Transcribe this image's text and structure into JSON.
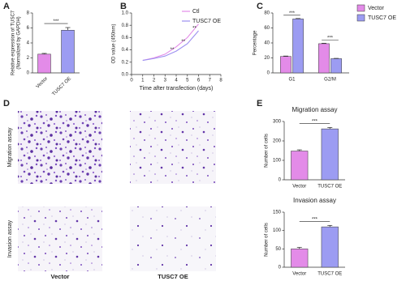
{
  "panels": {
    "a": "A",
    "b": "B",
    "c": "C",
    "d": "D",
    "e": "E"
  },
  "images": {
    "rows": [
      "Migration assay",
      "Invasion assay"
    ],
    "columns": [
      "Vector",
      "TUSC7 OE"
    ]
  },
  "chart_data": [
    {
      "type": "bar",
      "ylabel": [
        "Relative expression of TUSC7",
        "(Normalized by GAPDH)"
      ],
      "categories": [
        "Vector",
        "TUSC7 OE"
      ],
      "values": [
        2.5,
        5.7
      ],
      "errors": [
        0.1,
        0.35
      ],
      "colors": [
        "#e38be8",
        "#9c9cf2"
      ],
      "ylim": [
        0,
        8
      ],
      "yticks": [
        0,
        2,
        4,
        6,
        8
      ],
      "annotations": [
        "***"
      ]
    },
    {
      "type": "line",
      "xlabel": "Time after transfection (days)",
      "ylabel": "OD value (450nm)",
      "x": [
        1,
        2,
        3,
        4,
        5,
        6
      ],
      "xlim": [
        0,
        8
      ],
      "xticks": [
        0,
        1,
        2,
        3,
        4,
        5,
        6,
        7,
        8
      ],
      "ylim": [
        0,
        1.0
      ],
      "yticks": [
        {
          "value": 0,
          "label": "0.0"
        },
        {
          "value": 0.2,
          "label": "0.2"
        },
        {
          "value": 0.4,
          "label": "0.4"
        },
        {
          "value": 0.6,
          "label": "0.6"
        },
        {
          "value": 0.8,
          "label": "0.8"
        },
        {
          "value": 1.0,
          "label": "1.0"
        }
      ],
      "series": [
        {
          "name": "Ctl",
          "color": "#e38be8",
          "values": [
            0.23,
            0.27,
            0.33,
            0.45,
            0.6,
            0.82
          ]
        },
        {
          "name": "TUSC7 OE",
          "color": "#9c8ff0",
          "values": [
            0.23,
            0.26,
            0.3,
            0.38,
            0.5,
            0.71
          ]
        }
      ],
      "legend": "upper-right",
      "annotations": [
        {
          "text": "**",
          "x": 4
        },
        {
          "text": "**",
          "x": 5
        },
        {
          "text": "**",
          "x": 6
        }
      ]
    },
    {
      "type": "bar",
      "ylabel": "Percentage",
      "categories": [
        "G1",
        "G2/M"
      ],
      "series": [
        {
          "name": "Vector",
          "color": "#e38be8",
          "values": [
            22,
            39
          ],
          "errors": [
            0.5,
            0.6
          ]
        },
        {
          "name": "TUSC7 OE",
          "color": "#9c9cf2",
          "values": [
            72,
            19
          ],
          "errors": [
            0.6,
            0.4
          ]
        }
      ],
      "ylim": [
        0,
        80
      ],
      "yticks": [
        0,
        20,
        40,
        60,
        80
      ],
      "legend": "right",
      "annotations": [
        "***",
        "***"
      ]
    },
    {
      "type": "bar",
      "title": "Migration assay",
      "ylabel": "Number of cells",
      "categories": [
        "Vector",
        "TUSC7 OE"
      ],
      "values": [
        148,
        262
      ],
      "errors": [
        6,
        7
      ],
      "colors": [
        "#e38be8",
        "#9c9cf2"
      ],
      "ylim": [
        0,
        300
      ],
      "yticks": [
        0,
        100,
        200,
        300
      ],
      "annotations": [
        "***"
      ]
    },
    {
      "type": "bar",
      "title": "Invasion assay",
      "ylabel": "Number of cells",
      "categories": [
        "Vector",
        "TUSC7 OE"
      ],
      "values": [
        50,
        110
      ],
      "errors": [
        4,
        4
      ],
      "colors": [
        "#e38be8",
        "#9c9cf2"
      ],
      "ylim": [
        0,
        150
      ],
      "yticks": [
        0,
        50,
        100,
        150
      ],
      "annotations": [
        "***"
      ]
    }
  ]
}
